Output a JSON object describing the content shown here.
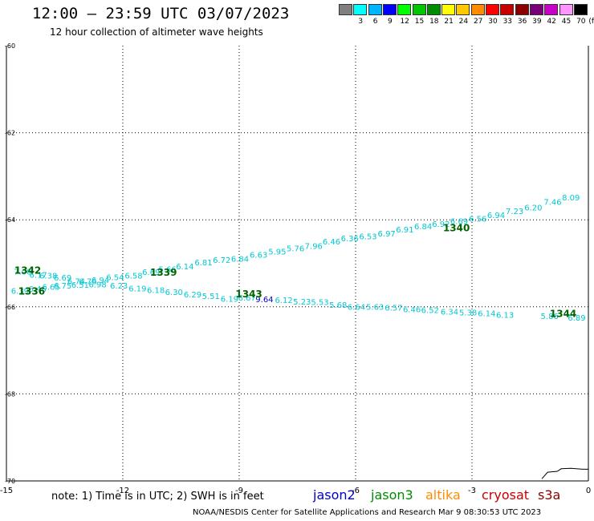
{
  "header": {
    "title": "12:00 – 23:59 UTC 03/07/2023",
    "subtitle": "12 hour collection of altimeter wave heights"
  },
  "legend": {
    "unit": "(ft)",
    "bins": [
      {
        "label": "",
        "color": "#808080"
      },
      {
        "label": "3",
        "color": "#00ffff"
      },
      {
        "label": "6",
        "color": "#00b4ff"
      },
      {
        "label": "9",
        "color": "#0000ff"
      },
      {
        "label": "12",
        "color": "#00ff00"
      },
      {
        "label": "15",
        "color": "#00c800"
      },
      {
        "label": "18",
        "color": "#008c00"
      },
      {
        "label": "21",
        "color": "#ffff00"
      },
      {
        "label": "24",
        "color": "#ffc800"
      },
      {
        "label": "27",
        "color": "#ff8c00"
      },
      {
        "label": "30",
        "color": "#ff0000"
      },
      {
        "label": "33",
        "color": "#c80000"
      },
      {
        "label": "36",
        "color": "#8c0000"
      },
      {
        "label": "39",
        "color": "#780078"
      },
      {
        "label": "42",
        "color": "#c800c8"
      },
      {
        "label": "45",
        "color": "#ff96ff"
      },
      {
        "label": "70",
        "color": "#000000"
      }
    ]
  },
  "footer": {
    "note": "note:  1) Time is in UTC;  2) SWH is in feet",
    "satellites": [
      {
        "name": "jason2",
        "color": "#0000cc"
      },
      {
        "name": "jason3",
        "color": "#008c00"
      },
      {
        "name": "altika",
        "color": "#ff8c00"
      },
      {
        "name": "cryosat",
        "color": "#cc0000"
      },
      {
        "name": "s3a",
        "color": "#8c0000"
      }
    ],
    "credit": "NOAA/NESDIS Center for Satellite Applications and Research    Mar  9 08:30:53 UTC 2023"
  },
  "chart_data": {
    "type": "scatter",
    "xlim": [
      -15,
      0
    ],
    "ylim": [
      -70,
      -60
    ],
    "x_ticks": [
      -15,
      -12,
      -9,
      -6,
      -3,
      0
    ],
    "x_tick_labels": [
      "-15",
      "-12",
      "-9",
      "-6",
      "-3",
      "0"
    ],
    "y_ticks": [
      -70,
      -68,
      -66,
      -64,
      -62,
      -60
    ],
    "y_tick_labels": [
      "-70",
      "-68",
      "-66",
      "-64",
      "-62",
      "-60"
    ],
    "grid": true,
    "colors": {
      "light": "#00c8d2",
      "dark": "#0000c8",
      "time": "#006400"
    },
    "track_upper": {
      "values": [
        "7.00",
        "6.17",
        "6.38",
        "6.69",
        "6.74",
        "6.76",
        "6.94",
        "6.54",
        "6.58",
        "6.69",
        "5.66",
        "6.14",
        "6.81",
        "6.72",
        "6.84",
        "6.63",
        "5.95",
        "5.76",
        "7.96",
        "6.46",
        "6.36",
        "6.53",
        "6.97",
        "6.91",
        "6.84",
        "6.92",
        "6.69",
        "6.56",
        "6.94",
        "7.23",
        "6.20",
        "7.46",
        "8.09"
      ],
      "points": [
        {
          "x": -14.58,
          "y": -65.26
        },
        {
          "x": -14.18,
          "y": -65.33
        },
        {
          "x": -13.92,
          "y": -65.35
        },
        {
          "x": -13.55,
          "y": -65.4
        },
        {
          "x": -13.2,
          "y": -65.48
        },
        {
          "x": -12.9,
          "y": -65.48
        },
        {
          "x": -12.58,
          "y": -65.45
        },
        {
          "x": -12.2,
          "y": -65.39
        },
        {
          "x": -11.72,
          "y": -65.35
        },
        {
          "x": -11.27,
          "y": -65.27
        },
        {
          "x": -10.85,
          "y": -65.2
        },
        {
          "x": -10.4,
          "y": -65.14
        },
        {
          "x": -9.92,
          "y": -65.05
        },
        {
          "x": -9.45,
          "y": -64.99
        },
        {
          "x": -8.98,
          "y": -64.96
        },
        {
          "x": -8.5,
          "y": -64.87
        },
        {
          "x": -8.02,
          "y": -64.8
        },
        {
          "x": -7.55,
          "y": -64.72
        },
        {
          "x": -7.08,
          "y": -64.67
        },
        {
          "x": -6.62,
          "y": -64.57
        },
        {
          "x": -6.15,
          "y": -64.49
        },
        {
          "x": -5.68,
          "y": -64.45
        },
        {
          "x": -5.2,
          "y": -64.38
        },
        {
          "x": -4.73,
          "y": -64.29
        },
        {
          "x": -4.26,
          "y": -64.22
        },
        {
          "x": -3.8,
          "y": -64.16
        },
        {
          "x": -3.33,
          "y": -64.1
        },
        {
          "x": -2.85,
          "y": -64.04
        },
        {
          "x": -2.38,
          "y": -63.96
        },
        {
          "x": -1.9,
          "y": -63.87
        },
        {
          "x": -1.42,
          "y": -63.78
        },
        {
          "x": -0.92,
          "y": -63.66
        },
        {
          "x": -0.45,
          "y": -63.55
        }
      ],
      "times": [
        {
          "label": "1342",
          "x": -14.45,
          "y": -65.24
        },
        {
          "label": "1339",
          "x": -10.95,
          "y": -65.29
        },
        {
          "label": "1340",
          "x": -3.4,
          "y": -64.26
        }
      ]
    },
    "track_lower": {
      "values": [
        "6.39",
        "6.46",
        "6.65",
        "6.75",
        "6.51",
        "6.98",
        "6.23",
        "6.19",
        "6.18",
        "6.30",
        "6.29",
        "5.51",
        "6.19",
        "6.67",
        "9.64",
        "6.12",
        "5.23",
        "5.53",
        "5.68",
        "6.64",
        "5.63",
        "6.57",
        "6.46",
        "6.52",
        "6.34",
        "5.38",
        "6.14",
        "6.13",
        "5.86",
        "6.89"
      ],
      "dark_index": 14,
      "points": [
        {
          "x": -14.65,
          "y": -65.7
        },
        {
          "x": -14.2,
          "y": -65.65
        },
        {
          "x": -13.85,
          "y": -65.61
        },
        {
          "x": -13.55,
          "y": -65.58
        },
        {
          "x": -13.1,
          "y": -65.56
        },
        {
          "x": -12.65,
          "y": -65.55
        },
        {
          "x": -12.1,
          "y": -65.58
        },
        {
          "x": -11.62,
          "y": -65.64
        },
        {
          "x": -11.15,
          "y": -65.68
        },
        {
          "x": -10.68,
          "y": -65.73
        },
        {
          "x": -10.2,
          "y": -65.78
        },
        {
          "x": -9.73,
          "y": -65.82
        },
        {
          "x": -9.25,
          "y": -65.88
        },
        {
          "x": -8.8,
          "y": -65.86
        },
        {
          "x": -8.35,
          "y": -65.89
        },
        {
          "x": -7.85,
          "y": -65.91
        },
        {
          "x": -7.38,
          "y": -65.95
        },
        {
          "x": -6.92,
          "y": -65.96
        },
        {
          "x": -6.45,
          "y": -66.02
        },
        {
          "x": -5.98,
          "y": -66.07
        },
        {
          "x": -5.5,
          "y": -66.07
        },
        {
          "x": -5.02,
          "y": -66.09
        },
        {
          "x": -4.55,
          "y": -66.12
        },
        {
          "x": -4.08,
          "y": -66.14
        },
        {
          "x": -3.58,
          "y": -66.18
        },
        {
          "x": -3.1,
          "y": -66.2
        },
        {
          "x": -2.62,
          "y": -66.22
        },
        {
          "x": -2.15,
          "y": -66.25
        },
        {
          "x": -1.0,
          "y": -66.28
        },
        {
          "x": -0.3,
          "y": -66.32
        }
      ],
      "times": [
        {
          "label": "1336",
          "x": -14.35,
          "y": -65.72
        },
        {
          "label": "1343",
          "x": -8.75,
          "y": -65.78
        },
        {
          "label": "1344",
          "x": -0.65,
          "y": -66.23
        }
      ]
    },
    "coastline": [
      {
        "x": -1.2,
        "y": -69.95
      },
      {
        "x": -1.05,
        "y": -69.8
      },
      {
        "x": -0.8,
        "y": -69.78
      },
      {
        "x": -0.7,
        "y": -69.72
      },
      {
        "x": -0.45,
        "y": -69.71
      },
      {
        "x": -0.15,
        "y": -69.73
      },
      {
        "x": 0.0,
        "y": -69.73
      }
    ]
  }
}
